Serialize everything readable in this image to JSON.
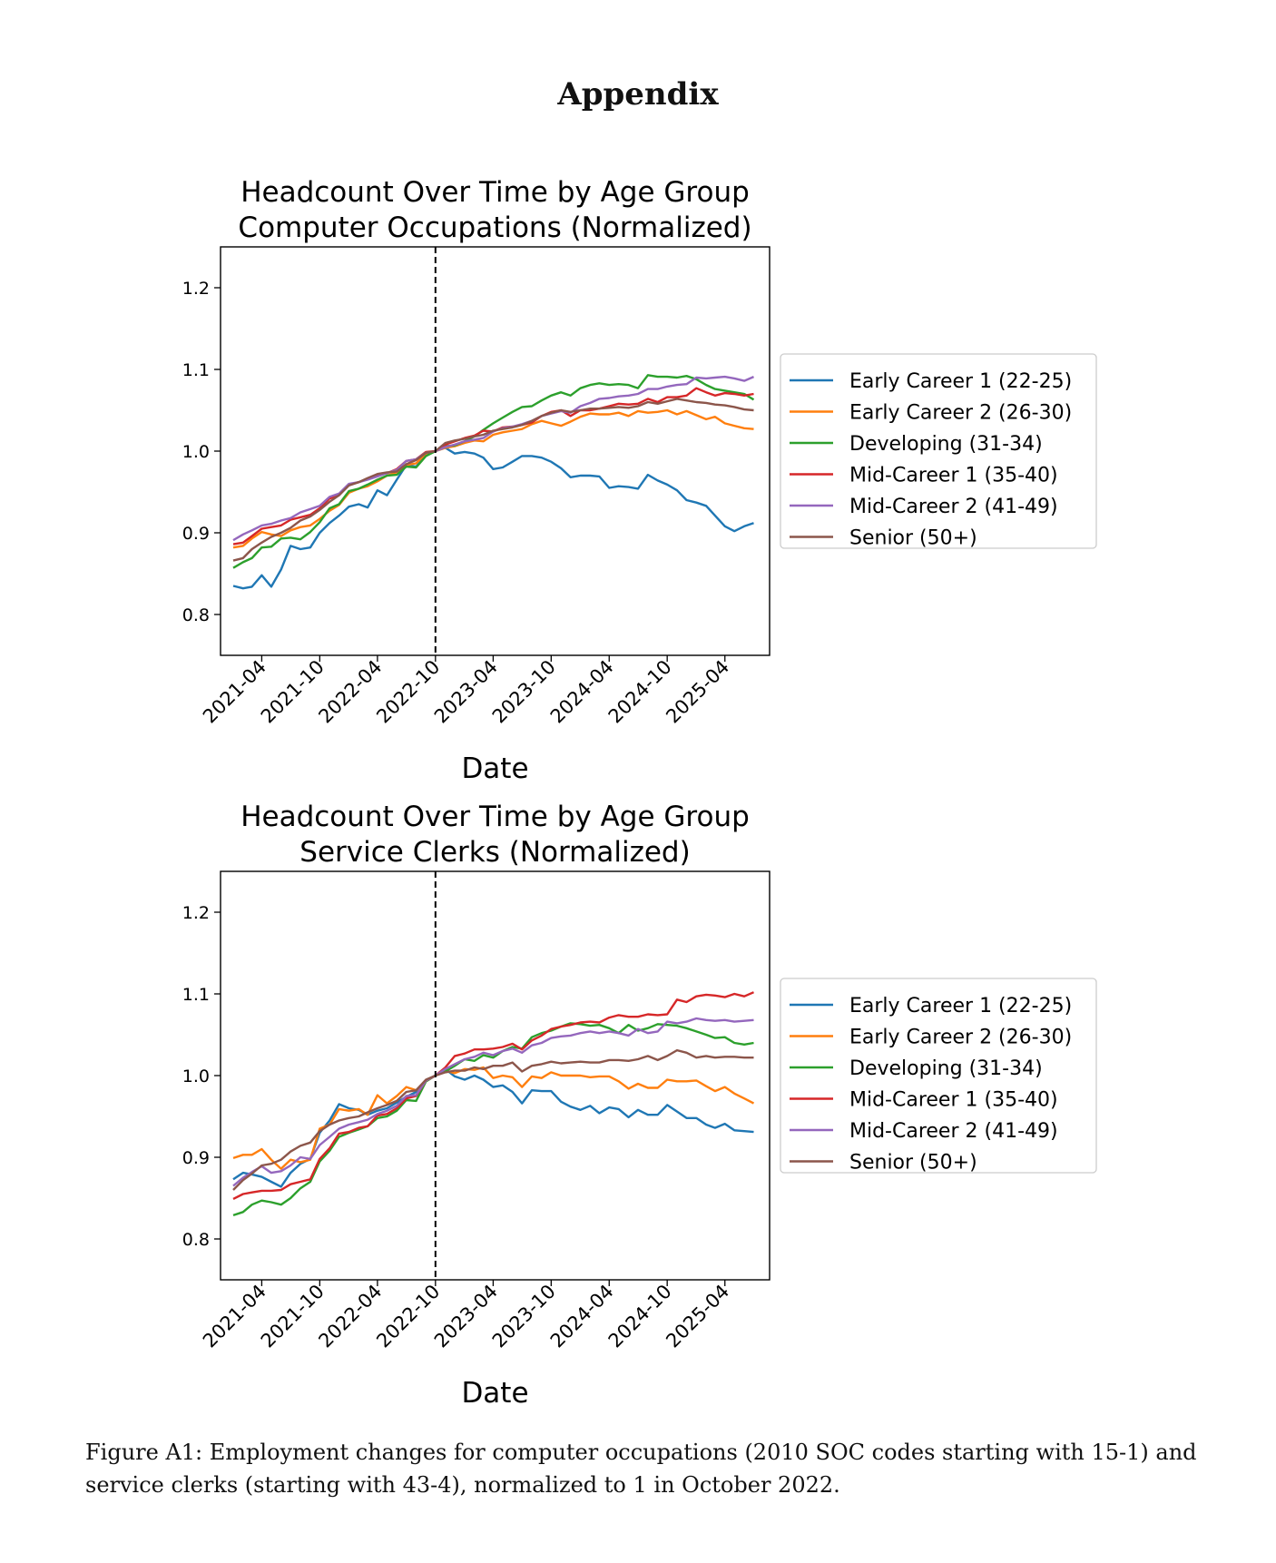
{
  "heading": "Appendix",
  "caption": "Figure A1: Employment changes for computer occupations (2010 SOC codes starting with 15-1) and service clerks (starting with 43-4), normalized to 1 in October 2022.",
  "chart_data": [
    {
      "type": "line",
      "title": "Headcount Over Time by Age Group",
      "subtitle": "Computer Occupations (Normalized)",
      "xlabel": "Date",
      "ylabel": "",
      "xlim": [
        "2020-11-22",
        "2025-08-20"
      ],
      "ylim": [
        0.75,
        1.25
      ],
      "xticks": [
        "2021-04",
        "2021-10",
        "2022-04",
        "2022-10",
        "2023-04",
        "2023-10",
        "2024-04",
        "2024-10",
        "2025-04"
      ],
      "yticks": [
        0.8,
        0.9,
        1.0,
        1.1,
        1.2
      ],
      "reference_line": "2022-10",
      "grid": false,
      "legend_position": "right",
      "x_start": "2021-01",
      "x_end": "2025-06",
      "series": [
        {
          "name": "Early Career 1 (22-25)",
          "color": "#1f77b4",
          "values": [
            0.835,
            0.832,
            0.834,
            0.848,
            0.834,
            0.855,
            0.884,
            0.88,
            0.882,
            0.9,
            0.912,
            0.921,
            0.932,
            0.935,
            0.931,
            0.952,
            0.946,
            0.965,
            0.983,
            0.981,
            0.995,
            1.0,
            1.004,
            0.997,
            0.999,
            0.997,
            0.992,
            0.978,
            0.98,
            0.987,
            0.994,
            0.994,
            0.992,
            0.987,
            0.979,
            0.968,
            0.97,
            0.97,
            0.969,
            0.955,
            0.957,
            0.956,
            0.954,
            0.971,
            0.964,
            0.959,
            0.952,
            0.94,
            0.937,
            0.933,
            0.921,
            0.908,
            0.902,
            0.908,
            0.912
          ]
        },
        {
          "name": "Early Career 2 (26-30)",
          "color": "#ff7f0e",
          "values": [
            0.882,
            0.884,
            0.893,
            0.901,
            0.898,
            0.896,
            0.903,
            0.907,
            0.909,
            0.917,
            0.927,
            0.934,
            0.949,
            0.954,
            0.957,
            0.963,
            0.97,
            0.974,
            0.983,
            0.985,
            0.997,
            1.0,
            1.004,
            1.006,
            1.01,
            1.013,
            1.012,
            1.02,
            1.023,
            1.025,
            1.027,
            1.033,
            1.037,
            1.034,
            1.031,
            1.036,
            1.042,
            1.046,
            1.045,
            1.045,
            1.047,
            1.043,
            1.049,
            1.047,
            1.048,
            1.05,
            1.045,
            1.049,
            1.044,
            1.039,
            1.042,
            1.034,
            1.031,
            1.028,
            1.027
          ]
        },
        {
          "name": "Developing (31-34)",
          "color": "#2ca02c",
          "values": [
            0.857,
            0.864,
            0.869,
            0.882,
            0.883,
            0.893,
            0.894,
            0.892,
            0.901,
            0.913,
            0.93,
            0.935,
            0.951,
            0.954,
            0.959,
            0.965,
            0.97,
            0.971,
            0.981,
            0.98,
            0.994,
            1.0,
            1.006,
            1.007,
            1.012,
            1.018,
            1.026,
            1.034,
            1.041,
            1.048,
            1.054,
            1.055,
            1.062,
            1.068,
            1.072,
            1.068,
            1.077,
            1.081,
            1.083,
            1.081,
            1.082,
            1.081,
            1.077,
            1.093,
            1.091,
            1.091,
            1.09,
            1.092,
            1.088,
            1.081,
            1.076,
            1.074,
            1.072,
            1.07,
            1.063
          ]
        },
        {
          "name": "Mid-Career 1 (35-40)",
          "color": "#d62728",
          "values": [
            0.886,
            0.888,
            0.896,
            0.905,
            0.907,
            0.909,
            0.916,
            0.919,
            0.922,
            0.93,
            0.942,
            0.946,
            0.959,
            0.962,
            0.966,
            0.971,
            0.973,
            0.978,
            0.988,
            0.99,
            0.999,
            1.0,
            1.008,
            1.012,
            1.016,
            1.019,
            1.025,
            1.024,
            1.029,
            1.03,
            1.032,
            1.035,
            1.043,
            1.048,
            1.05,
            1.043,
            1.05,
            1.05,
            1.052,
            1.055,
            1.058,
            1.057,
            1.058,
            1.064,
            1.06,
            1.066,
            1.066,
            1.068,
            1.077,
            1.072,
            1.068,
            1.071,
            1.07,
            1.068,
            1.07
          ]
        },
        {
          "name": "Mid-Career 2 (41-49)",
          "color": "#9467bd",
          "values": [
            0.891,
            0.898,
            0.903,
            0.909,
            0.911,
            0.915,
            0.918,
            0.925,
            0.929,
            0.933,
            0.944,
            0.948,
            0.96,
            0.962,
            0.965,
            0.969,
            0.973,
            0.977,
            0.988,
            0.99,
            0.998,
            1.0,
            1.005,
            1.008,
            1.012,
            1.014,
            1.016,
            1.024,
            1.028,
            1.03,
            1.033,
            1.037,
            1.043,
            1.046,
            1.049,
            1.047,
            1.055,
            1.059,
            1.064,
            1.065,
            1.067,
            1.068,
            1.07,
            1.076,
            1.076,
            1.079,
            1.081,
            1.082,
            1.09,
            1.089,
            1.09,
            1.091,
            1.089,
            1.086,
            1.091
          ]
        },
        {
          "name": "Senior (50+)",
          "color": "#8c564b",
          "values": [
            0.866,
            0.869,
            0.88,
            0.888,
            0.895,
            0.9,
            0.906,
            0.915,
            0.92,
            0.928,
            0.938,
            0.946,
            0.958,
            0.962,
            0.967,
            0.972,
            0.974,
            0.975,
            0.984,
            0.989,
            0.998,
            1.0,
            1.01,
            1.013,
            1.015,
            1.018,
            1.02,
            1.025,
            1.027,
            1.029,
            1.032,
            1.037,
            1.043,
            1.047,
            1.05,
            1.048,
            1.05,
            1.052,
            1.052,
            1.053,
            1.054,
            1.053,
            1.055,
            1.06,
            1.058,
            1.061,
            1.064,
            1.062,
            1.06,
            1.059,
            1.057,
            1.056,
            1.054,
            1.051,
            1.05
          ]
        }
      ]
    },
    {
      "type": "line",
      "title": "Headcount Over Time by Age Group",
      "subtitle": "Service Clerks (Normalized)",
      "xlabel": "Date",
      "ylabel": "",
      "xlim": [
        "2020-11-22",
        "2025-08-20"
      ],
      "ylim": [
        0.75,
        1.25
      ],
      "xticks": [
        "2021-04",
        "2021-10",
        "2022-04",
        "2022-10",
        "2023-04",
        "2023-10",
        "2024-04",
        "2024-10",
        "2025-04"
      ],
      "yticks": [
        0.8,
        0.9,
        1.0,
        1.1,
        1.2
      ],
      "reference_line": "2022-10",
      "grid": false,
      "legend_position": "right",
      "x_start": "2021-01",
      "x_end": "2025-06",
      "series": [
        {
          "name": "Early Career 1 (22-25)",
          "color": "#1f77b4",
          "values": [
            0.873,
            0.881,
            0.879,
            0.876,
            0.87,
            0.864,
            0.881,
            0.892,
            0.898,
            0.93,
            0.945,
            0.965,
            0.96,
            0.958,
            0.952,
            0.957,
            0.96,
            0.967,
            0.974,
            0.98,
            0.994,
            1.0,
            1.008,
            0.999,
            0.995,
            1.0,
            0.995,
            0.986,
            0.988,
            0.98,
            0.966,
            0.982,
            0.981,
            0.981,
            0.968,
            0.962,
            0.958,
            0.963,
            0.954,
            0.961,
            0.959,
            0.949,
            0.958,
            0.952,
            0.952,
            0.964,
            0.956,
            0.948,
            0.948,
            0.94,
            0.936,
            0.941,
            0.933,
            0.932,
            0.931
          ]
        },
        {
          "name": "Early Career 2 (26-30)",
          "color": "#ff7f0e",
          "values": [
            0.899,
            0.903,
            0.903,
            0.91,
            0.897,
            0.886,
            0.897,
            0.894,
            0.897,
            0.935,
            0.94,
            0.959,
            0.957,
            0.959,
            0.952,
            0.976,
            0.966,
            0.975,
            0.986,
            0.982,
            0.993,
            1.0,
            1.006,
            1.003,
            1.008,
            1.007,
            1.01,
            0.997,
            1.0,
            0.998,
            0.986,
            0.999,
            0.997,
            1.004,
            1.0,
            1.0,
            1.0,
            0.998,
            0.999,
            0.999,
            0.993,
            0.984,
            0.99,
            0.985,
            0.985,
            0.995,
            0.993,
            0.993,
            0.994,
            0.987,
            0.981,
            0.986,
            0.978,
            0.972,
            0.966
          ]
        },
        {
          "name": "Developing (31-34)",
          "color": "#2ca02c",
          "values": [
            0.829,
            0.833,
            0.842,
            0.847,
            0.845,
            0.842,
            0.85,
            0.862,
            0.87,
            0.895,
            0.908,
            0.925,
            0.93,
            0.934,
            0.938,
            0.948,
            0.95,
            0.957,
            0.97,
            0.969,
            0.993,
            1.0,
            1.005,
            1.012,
            1.02,
            1.018,
            1.025,
            1.022,
            1.03,
            1.035,
            1.033,
            1.047,
            1.052,
            1.055,
            1.06,
            1.064,
            1.063,
            1.061,
            1.062,
            1.058,
            1.052,
            1.062,
            1.055,
            1.058,
            1.063,
            1.062,
            1.061,
            1.058,
            1.054,
            1.05,
            1.046,
            1.047,
            1.04,
            1.038,
            1.04
          ]
        },
        {
          "name": "Mid-Career 1 (35-40)",
          "color": "#d62728",
          "values": [
            0.849,
            0.855,
            0.857,
            0.859,
            0.859,
            0.86,
            0.867,
            0.87,
            0.873,
            0.898,
            0.911,
            0.929,
            0.931,
            0.936,
            0.938,
            0.951,
            0.953,
            0.96,
            0.972,
            0.975,
            0.994,
            1.0,
            1.01,
            1.024,
            1.027,
            1.032,
            1.032,
            1.033,
            1.035,
            1.039,
            1.032,
            1.043,
            1.049,
            1.057,
            1.06,
            1.062,
            1.065,
            1.066,
            1.065,
            1.071,
            1.074,
            1.072,
            1.072,
            1.075,
            1.074,
            1.075,
            1.093,
            1.09,
            1.097,
            1.099,
            1.098,
            1.096,
            1.1,
            1.097,
            1.102
          ]
        },
        {
          "name": "Mid-Career 2 (41-49)",
          "color": "#9467bd",
          "values": [
            0.865,
            0.875,
            0.882,
            0.889,
            0.881,
            0.883,
            0.89,
            0.9,
            0.898,
            0.915,
            0.925,
            0.935,
            0.94,
            0.943,
            0.946,
            0.953,
            0.957,
            0.963,
            0.975,
            0.976,
            0.994,
            1.0,
            1.008,
            1.014,
            1.02,
            1.023,
            1.028,
            1.025,
            1.03,
            1.033,
            1.028,
            1.037,
            1.04,
            1.046,
            1.048,
            1.049,
            1.052,
            1.054,
            1.052,
            1.054,
            1.052,
            1.049,
            1.057,
            1.052,
            1.054,
            1.066,
            1.064,
            1.066,
            1.07,
            1.068,
            1.067,
            1.068,
            1.066,
            1.067,
            1.068
          ]
        },
        {
          "name": "Senior (50+)",
          "color": "#8c564b",
          "values": [
            0.86,
            0.872,
            0.88,
            0.89,
            0.892,
            0.897,
            0.907,
            0.914,
            0.918,
            0.932,
            0.94,
            0.945,
            0.948,
            0.95,
            0.955,
            0.96,
            0.964,
            0.969,
            0.98,
            0.982,
            0.995,
            1.0,
            1.004,
            1.006,
            1.006,
            1.01,
            1.008,
            1.012,
            1.012,
            1.016,
            1.005,
            1.012,
            1.014,
            1.017,
            1.015,
            1.016,
            1.017,
            1.016,
            1.016,
            1.019,
            1.019,
            1.018,
            1.02,
            1.024,
            1.019,
            1.024,
            1.031,
            1.028,
            1.022,
            1.024,
            1.022,
            1.023,
            1.023,
            1.022,
            1.022
          ]
        }
      ]
    }
  ]
}
